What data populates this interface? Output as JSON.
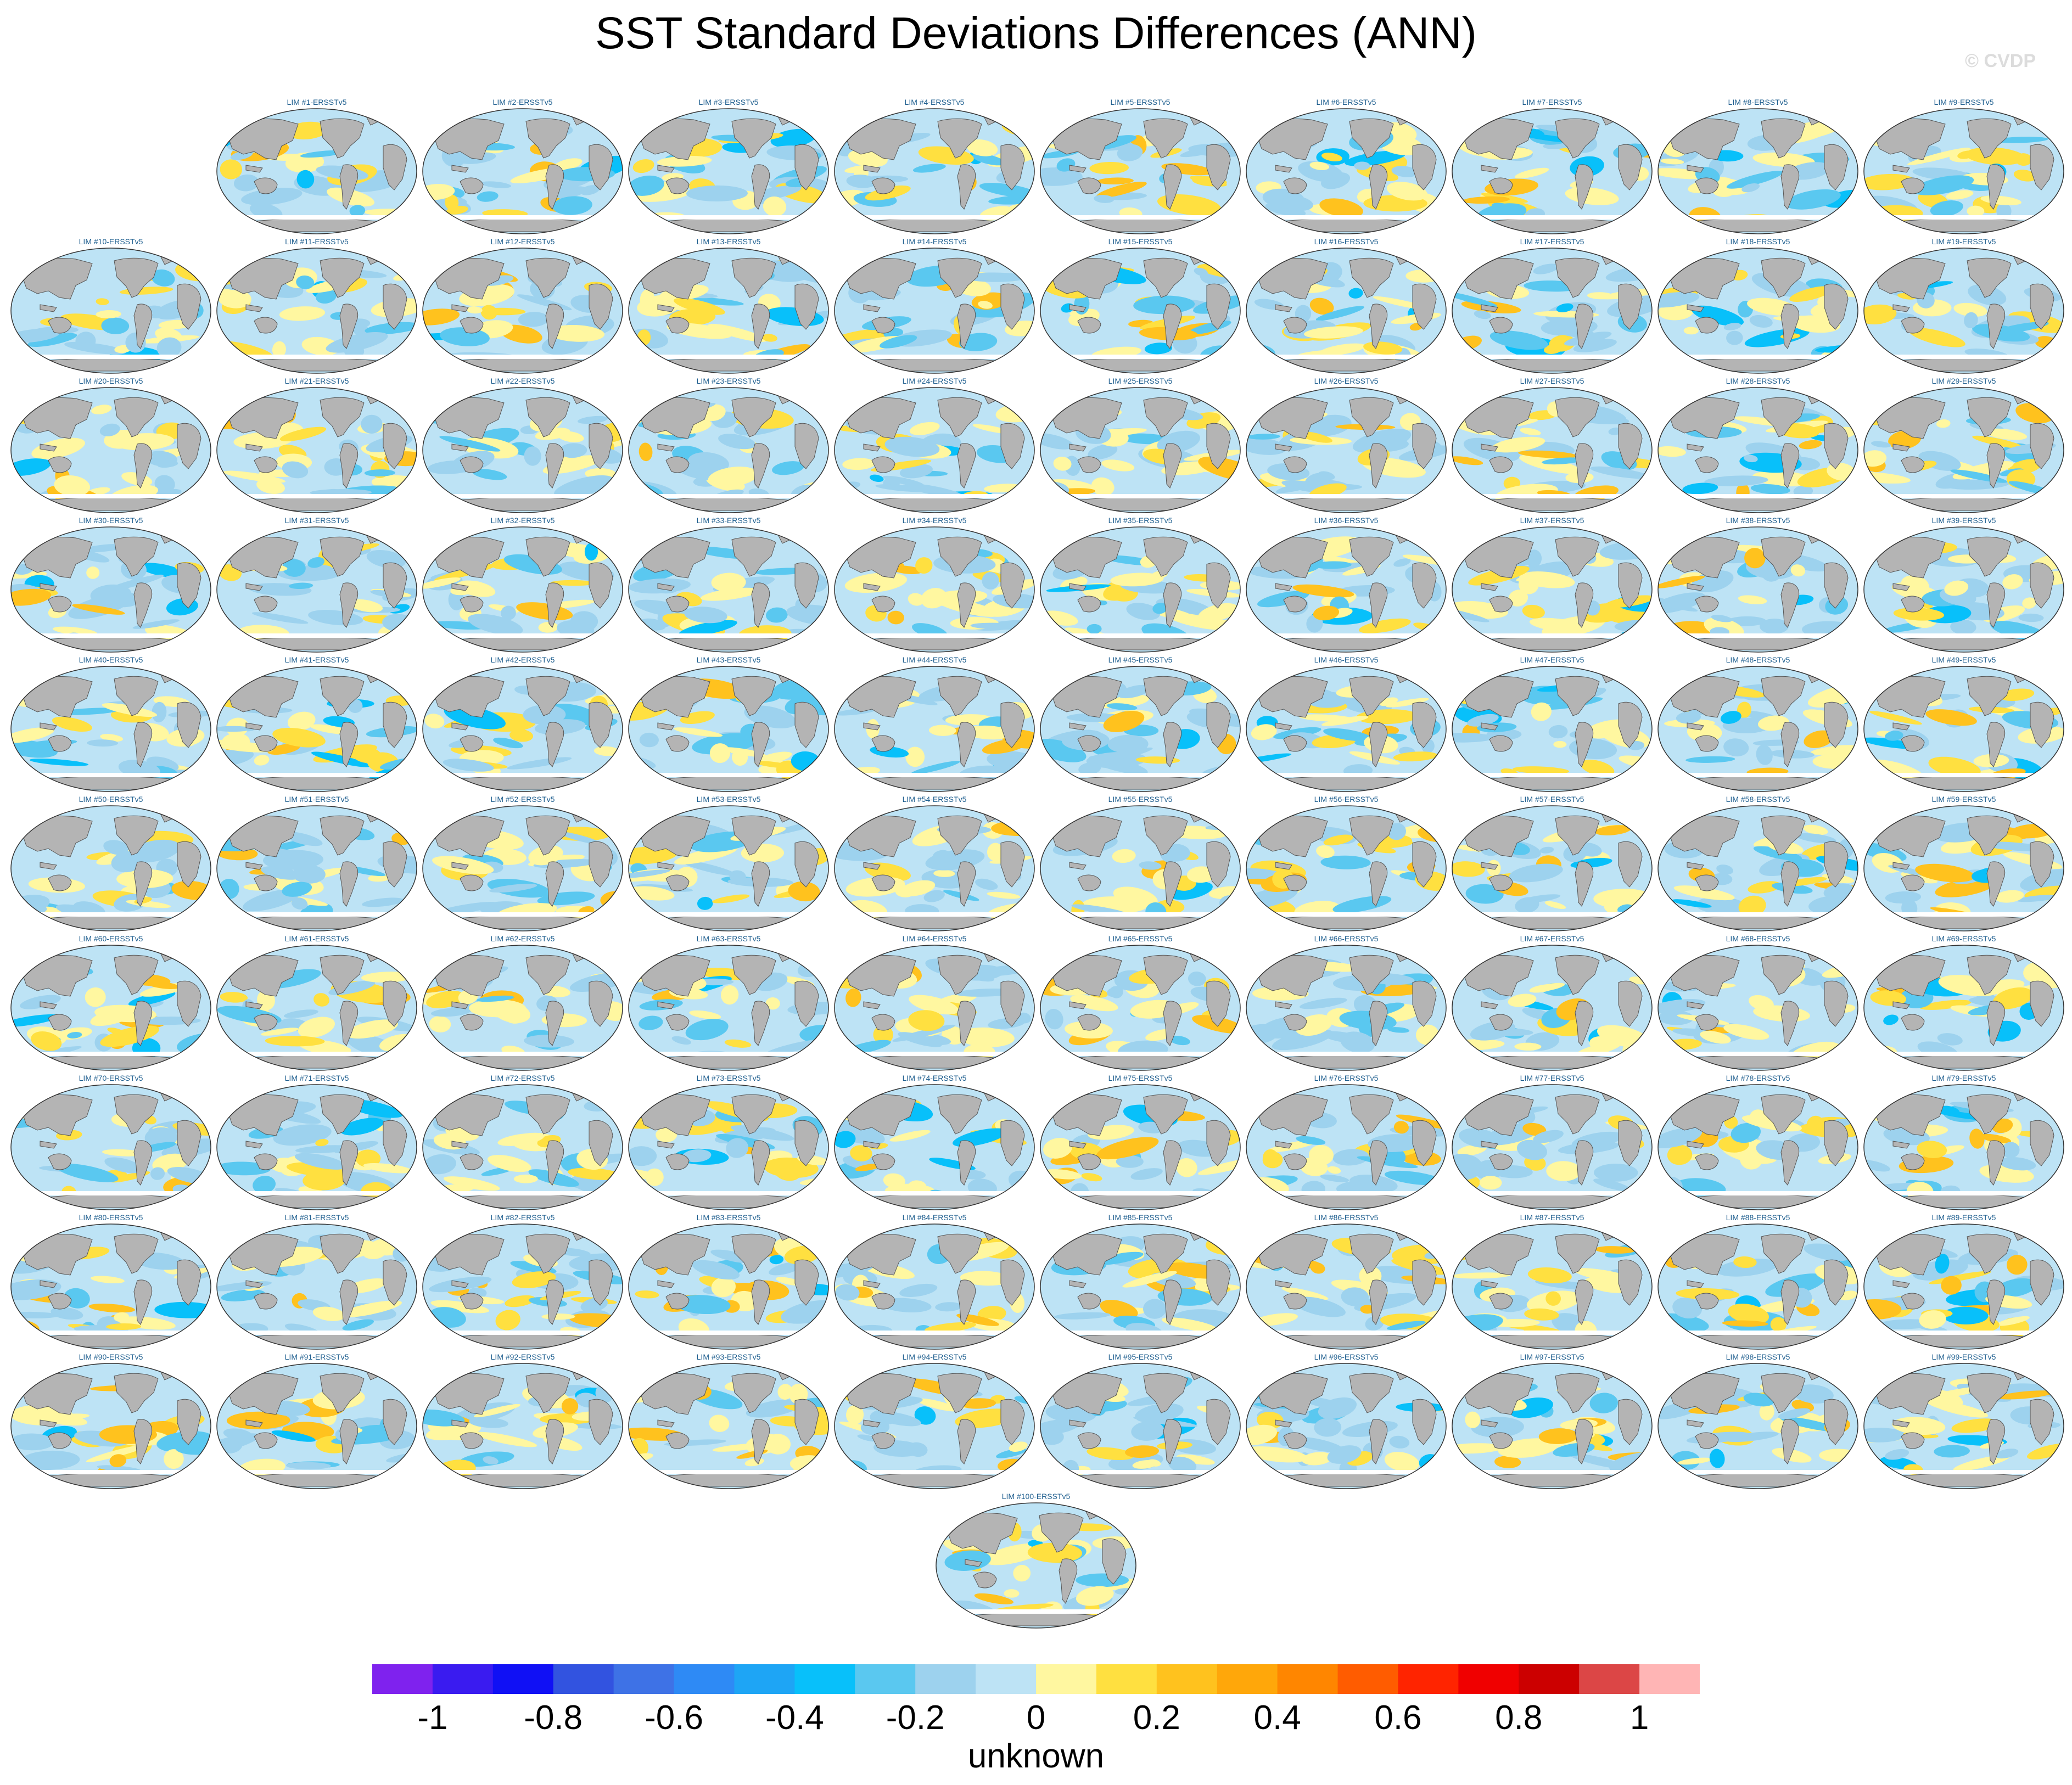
{
  "title": "SST Standard Deviations Differences (ANN)",
  "watermark": "© CVDP",
  "panel_suffix": "-ERSSTv5",
  "panel_prefix": "LIM #",
  "panels": [
    "LIM #1-ERSSTv5",
    "LIM #2-ERSSTv5",
    "LIM #3-ERSSTv5",
    "LIM #4-ERSSTv5",
    "LIM #5-ERSSTv5",
    "LIM #6-ERSSTv5",
    "LIM #7-ERSSTv5",
    "LIM #8-ERSSTv5",
    "LIM #9-ERSSTv5",
    "LIM #10-ERSSTv5",
    "LIM #11-ERSSTv5",
    "LIM #12-ERSSTv5",
    "LIM #13-ERSSTv5",
    "LIM #14-ERSSTv5",
    "LIM #15-ERSSTv5",
    "LIM #16-ERSSTv5",
    "LIM #17-ERSSTv5",
    "LIM #18-ERSSTv5",
    "LIM #19-ERSSTv5",
    "LIM #20-ERSSTv5",
    "LIM #21-ERSSTv5",
    "LIM #22-ERSSTv5",
    "LIM #23-ERSSTv5",
    "LIM #24-ERSSTv5",
    "LIM #25-ERSSTv5",
    "LIM #26-ERSSTv5",
    "LIM #27-ERSSTv5",
    "LIM #28-ERSSTv5",
    "LIM #29-ERSSTv5",
    "LIM #30-ERSSTv5",
    "LIM #31-ERSSTv5",
    "LIM #32-ERSSTv5",
    "LIM #33-ERSSTv5",
    "LIM #34-ERSSTv5",
    "LIM #35-ERSSTv5",
    "LIM #36-ERSSTv5",
    "LIM #37-ERSSTv5",
    "LIM #38-ERSSTv5",
    "LIM #39-ERSSTv5",
    "LIM #40-ERSSTv5",
    "LIM #41-ERSSTv5",
    "LIM #42-ERSSTv5",
    "LIM #43-ERSSTv5",
    "LIM #44-ERSSTv5",
    "LIM #45-ERSSTv5",
    "LIM #46-ERSSTv5",
    "LIM #47-ERSSTv5",
    "LIM #48-ERSSTv5",
    "LIM #49-ERSSTv5",
    "LIM #50-ERSSTv5",
    "LIM #51-ERSSTv5",
    "LIM #52-ERSSTv5",
    "LIM #53-ERSSTv5",
    "LIM #54-ERSSTv5",
    "LIM #55-ERSSTv5",
    "LIM #56-ERSSTv5",
    "LIM #57-ERSSTv5",
    "LIM #58-ERSSTv5",
    "LIM #59-ERSSTv5",
    "LIM #60-ERSSTv5",
    "LIM #61-ERSSTv5",
    "LIM #62-ERSSTv5",
    "LIM #63-ERSSTv5",
    "LIM #64-ERSSTv5",
    "LIM #65-ERSSTv5",
    "LIM #66-ERSSTv5",
    "LIM #67-ERSSTv5",
    "LIM #68-ERSSTv5",
    "LIM #69-ERSSTv5",
    "LIM #70-ERSSTv5",
    "LIM #71-ERSSTv5",
    "LIM #72-ERSSTv5",
    "LIM #73-ERSSTv5",
    "LIM #74-ERSSTv5",
    "LIM #75-ERSSTv5",
    "LIM #76-ERSSTv5",
    "LIM #77-ERSSTv5",
    "LIM #78-ERSSTv5",
    "LIM #79-ERSSTv5",
    "LIM #80-ERSSTv5",
    "LIM #81-ERSSTv5",
    "LIM #82-ERSSTv5",
    "LIM #83-ERSSTv5",
    "LIM #84-ERSSTv5",
    "LIM #85-ERSSTv5",
    "LIM #86-ERSSTv5",
    "LIM #87-ERSSTv5",
    "LIM #88-ERSSTv5",
    "LIM #89-ERSSTv5",
    "LIM #90-ERSSTv5",
    "LIM #91-ERSSTv5",
    "LIM #92-ERSSTv5",
    "LIM #93-ERSSTv5",
    "LIM #94-ERSSTv5",
    "LIM #95-ERSSTv5",
    "LIM #96-ERSSTv5",
    "LIM #97-ERSSTv5",
    "LIM #98-ERSSTv5",
    "LIM #99-ERSSTv5",
    "LIM #100-ERSSTv5"
  ],
  "colorbar": {
    "colors": [
      "#7f22ee",
      "#3a1bf0",
      "#1010f5",
      "#3253e0",
      "#3e72e6",
      "#2e8af5",
      "#1ea5f5",
      "#08c0fa",
      "#5ac8f0",
      "#9dd2ee",
      "#bde3f5",
      "#fff7a0",
      "#ffe040",
      "#ffc21e",
      "#ffa70a",
      "#ff8600",
      "#ff5c00",
      "#ff2400",
      "#f00000",
      "#cc0000",
      "#dc4646",
      "#ffb5b5"
    ],
    "ticks": [
      "-1",
      "-0.8",
      "-0.6",
      "-0.4",
      "-0.2",
      "0",
      "0.2",
      "0.4",
      "0.6",
      "0.8",
      "1"
    ],
    "tick_values": [
      -1,
      -0.8,
      -0.6,
      -0.4,
      -0.2,
      0,
      0.2,
      0.4,
      0.6,
      0.8,
      1
    ],
    "range": [
      -1.1,
      1.1
    ],
    "label": "unknown"
  },
  "colors": {
    "land": "#b4b4b4",
    "ocean_neutral": "#bde3f5",
    "title_text": "#1f5f8f"
  }
}
